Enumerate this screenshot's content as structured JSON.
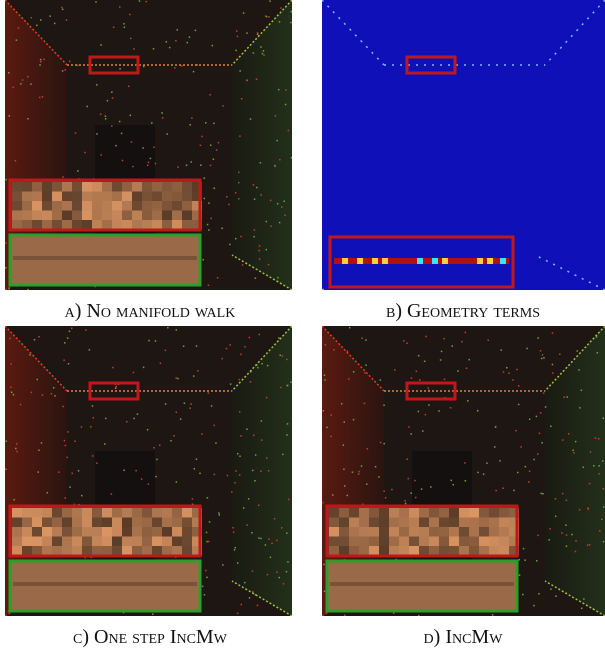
{
  "figure": {
    "panels": [
      {
        "caption": "a) No manifold walk"
      },
      {
        "caption": "b) Geometry terms"
      },
      {
        "caption": "c) One step IncMw"
      },
      {
        "caption": "d) IncMw"
      }
    ]
  }
}
